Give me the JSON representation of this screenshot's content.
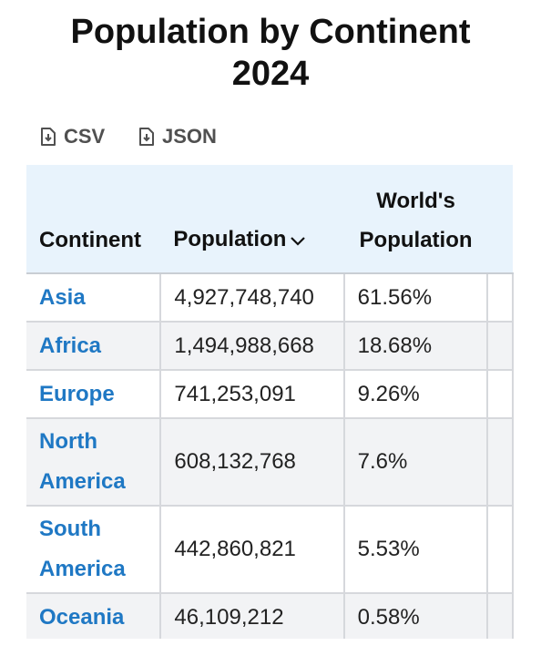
{
  "title_line1": "Population by Continent",
  "title_line2": "2024",
  "downloads": [
    {
      "label": "CSV",
      "icon": "file-download-icon"
    },
    {
      "label": "JSON",
      "icon": "file-download-icon"
    }
  ],
  "table": {
    "headers": {
      "continent": "Continent",
      "population": "Population",
      "share_line1": "World's",
      "share_line2": "Population",
      "sort_icon": "chevron-down-icon"
    },
    "rows": [
      {
        "continent": [
          "Asia"
        ],
        "population": "4,927,748,740",
        "share": "61.56%"
      },
      {
        "continent": [
          "Africa"
        ],
        "population": "1,494,988,668",
        "share": "18.68%"
      },
      {
        "continent": [
          "Europe"
        ],
        "population": "741,253,091",
        "share": "9.26%"
      },
      {
        "continent": [
          "North",
          "America"
        ],
        "population": "608,132,768",
        "share": "7.6%"
      },
      {
        "continent": [
          "South",
          "America"
        ],
        "population": "442,860,821",
        "share": "5.53%"
      },
      {
        "continent": [
          "Oceania"
        ],
        "population": "46,109,212",
        "share": "0.58%"
      }
    ]
  },
  "colors": {
    "link": "#1f78c4",
    "header_bg": "#e8f3fc",
    "alt_row_bg": "#f2f3f5",
    "download_text": "#505050"
  }
}
